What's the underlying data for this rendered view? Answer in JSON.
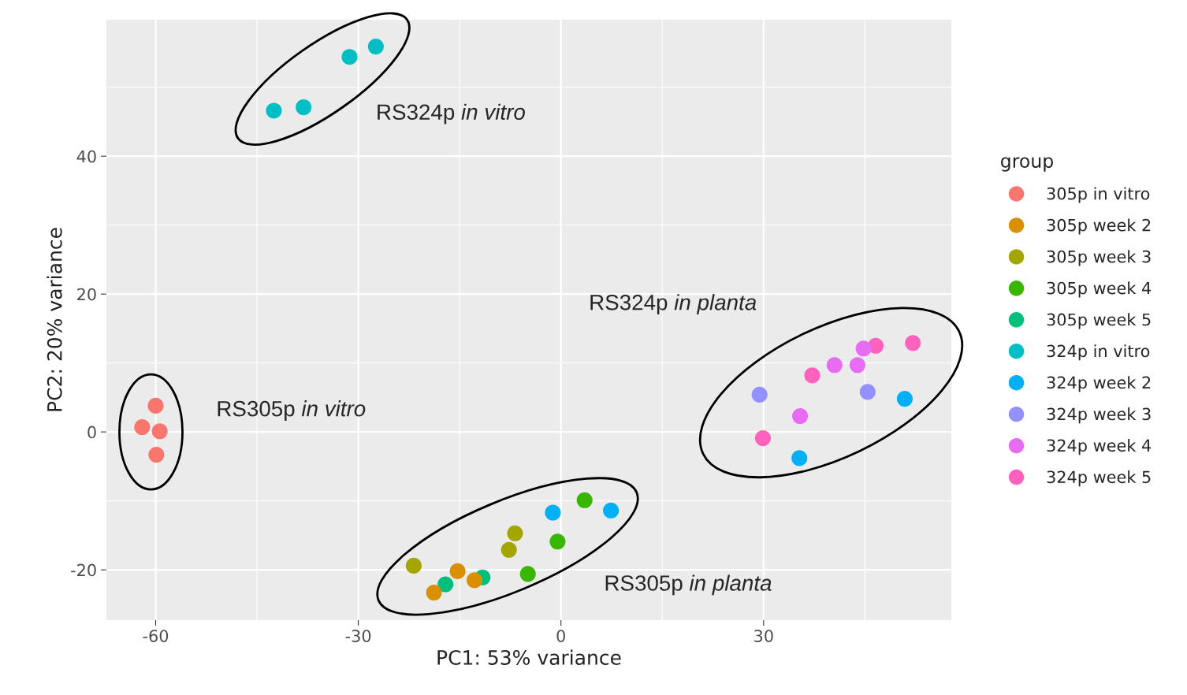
{
  "chart_data": {
    "type": "scatter",
    "xlabel": "PC1: 53% variance",
    "ylabel": "PC2: 20% variance",
    "legend_title": "group",
    "legend": "right",
    "grid": true,
    "marker": "circle",
    "xlim": [
      -67.3,
      57.8
    ],
    "ylim": [
      -27.3,
      59.8
    ],
    "xticks": [
      -60,
      -30,
      0,
      30
    ],
    "yticks": [
      -20,
      0,
      20,
      40
    ],
    "series": [
      {
        "name": "305p in vitro",
        "color": "#F8766D",
        "x": [
          -60.0,
          -62.0,
          -59.4,
          -59.9
        ],
        "values": [
          3.8,
          0.7,
          0.1,
          -3.3
        ]
      },
      {
        "name": "305p week 2",
        "color": "#D89000",
        "x": [
          -18.8,
          -15.3,
          -12.8
        ],
        "values": [
          -23.3,
          -20.2,
          -21.5
        ]
      },
      {
        "name": "305p week 3",
        "color": "#A3A500",
        "x": [
          -21.8,
          -7.7,
          -6.8
        ],
        "values": [
          -19.4,
          -17.1,
          -14.7
        ]
      },
      {
        "name": "305p week 4",
        "color": "#39B600",
        "x": [
          null,
          -4.9,
          -0.5,
          3.5
        ],
        "values": [
          null,
          -20.6,
          -15.9,
          -9.9
        ]
      },
      {
        "name": "305p week 5",
        "color": "#00BF7D",
        "x": [
          -17.1,
          null,
          -11.6
        ],
        "values": [
          -22.1,
          null,
          -21.1
        ]
      },
      {
        "name": "324p in vitro",
        "color": "#00BFC4",
        "x": [
          -42.5,
          -38.1,
          -31.3,
          -27.4
        ],
        "values": [
          46.6,
          47.1,
          54.4,
          55.9
        ]
      },
      {
        "name": "324p week 2",
        "color": "#00B0F6",
        "x": [
          -1.2,
          7.4,
          50.9,
          35.3
        ],
        "values": [
          -11.7,
          -11.4,
          4.8,
          -3.8
        ]
      },
      {
        "name": "324p week 3",
        "color": "#9590FF",
        "x": [
          29.4,
          45.4
        ],
        "values": [
          5.4,
          5.8
        ]
      },
      {
        "name": "324p week 4",
        "color": "#E76BF3",
        "x": [
          35.4,
          40.5,
          43.9,
          44.8
        ],
        "values": [
          2.3,
          9.7,
          9.7,
          12.1
        ]
      },
      {
        "name": "324p week 5",
        "color": "#FF62BC",
        "x": [
          29.9,
          37.2,
          46.6,
          52.1
        ],
        "values": [
          -0.9,
          8.2,
          12.5,
          12.9
        ]
      }
    ],
    "annotations": [
      "RS324p in vitro",
      "RS305p in vitro",
      "RS324p in planta",
      "RS305p in planta"
    ]
  }
}
